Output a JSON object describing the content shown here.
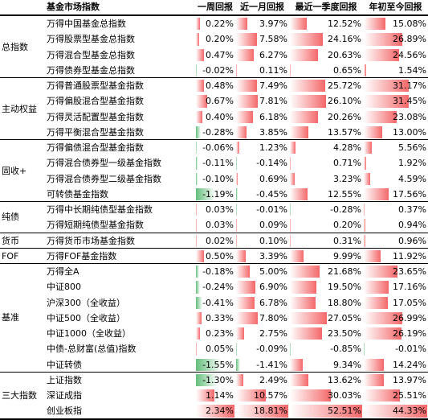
{
  "header": {
    "category": "",
    "name": "基金市场指数",
    "c1": "一周回报",
    "c2": "近一月回报",
    "c3": "最近一季度回报",
    "c4": "年初至今回报"
  },
  "colors": {
    "positive": "#f4686a",
    "negative": "#63be7b",
    "text": "#000000"
  },
  "groups": [
    {
      "label": "总指数",
      "rows": [
        {
          "name": "万得中国基金总指数",
          "v": [
            "0.22%",
            "3.97%",
            "12.52%",
            "15.08%"
          ],
          "n": [
            0.22,
            3.97,
            12.52,
            15.08
          ]
        },
        {
          "name": "万得股票型基金总指数",
          "v": [
            "0.20%",
            "7.58%",
            "24.16%",
            "26.89%"
          ],
          "n": [
            0.2,
            7.58,
            24.16,
            26.89
          ]
        },
        {
          "name": "万得混合型基金总指数",
          "v": [
            "0.47%",
            "6.27%",
            "20.63%",
            "24.56%"
          ],
          "n": [
            0.47,
            6.27,
            20.63,
            24.56
          ]
        },
        {
          "name": "万得债券型基金总指数",
          "v": [
            "-0.02%",
            "0.11%",
            "0.65%",
            "1.54%"
          ],
          "n": [
            -0.02,
            0.11,
            0.65,
            1.54
          ]
        }
      ]
    },
    {
      "label": "主动权益",
      "rows": [
        {
          "name": "万得普通股票型基金指数",
          "v": [
            "0.48%",
            "7.49%",
            "25.72%",
            "31.17%"
          ],
          "n": [
            0.48,
            7.49,
            25.72,
            31.17
          ]
        },
        {
          "name": "万得偏股混合型基金指数",
          "v": [
            "0.67%",
            "7.81%",
            "26.10%",
            "31.45%"
          ],
          "n": [
            0.67,
            7.81,
            26.1,
            31.45
          ]
        },
        {
          "name": "万得灵活配置型基金指数",
          "v": [
            "0.40%",
            "6.18%",
            "20.26%",
            "23.08%"
          ],
          "n": [
            0.4,
            6.18,
            20.26,
            23.08
          ]
        },
        {
          "name": "万得平衡混合型基金指数",
          "v": [
            "-0.28%",
            "3.85%",
            "13.57%",
            "13.00%"
          ],
          "n": [
            -0.28,
            3.85,
            13.57,
            13.0
          ]
        }
      ]
    },
    {
      "label": "固收+",
      "rows": [
        {
          "name": "万得偏债混合型基金指数",
          "v": [
            "-0.06%",
            "1.23%",
            "4.28%",
            "5.56%"
          ],
          "n": [
            -0.06,
            1.23,
            4.28,
            5.56
          ]
        },
        {
          "name": "万得混合债券型一级基金指数",
          "v": [
            "-0.11%",
            "-0.14%",
            "0.71%",
            "1.92%"
          ],
          "n": [
            -0.11,
            -0.14,
            0.71,
            1.92
          ]
        },
        {
          "name": "万得混合债券型二级基金指数",
          "v": [
            "-0.10%",
            "0.69%",
            "3.23%",
            "4.59%"
          ],
          "n": [
            -0.1,
            0.69,
            3.23,
            4.59
          ]
        },
        {
          "name": "可转债基金指数",
          "v": [
            "-1.19%",
            "-0.45%",
            "12.55%",
            "17.56%"
          ],
          "n": [
            -1.19,
            -0.45,
            12.55,
            17.56
          ]
        }
      ]
    },
    {
      "label": "纯债",
      "rows": [
        {
          "name": "万得中长期纯债型基金指数",
          "v": [
            "0.03%",
            "-0.01%",
            "-0.28%",
            "0.37%"
          ],
          "n": [
            0.03,
            -0.01,
            -0.28,
            0.37
          ]
        },
        {
          "name": "万得短期纯债型基金指数",
          "v": [
            "0.03%",
            "0.09%",
            "0.20%",
            "0.94%"
          ],
          "n": [
            0.03,
            0.09,
            0.2,
            0.94
          ]
        }
      ]
    },
    {
      "label": "货币",
      "rows": [
        {
          "name": "万得货币市场基金指数",
          "v": [
            "0.02%",
            "0.10%",
            "0.31%",
            "0.96%"
          ],
          "n": [
            0.02,
            0.1,
            0.31,
            0.96
          ]
        }
      ]
    },
    {
      "label": "FOF",
      "rows": [
        {
          "name": "万得FOF基金指数",
          "v": [
            "0.50%",
            "3.39%",
            "9.99%",
            "11.92%"
          ],
          "n": [
            0.5,
            3.39,
            9.99,
            11.92
          ]
        }
      ]
    },
    {
      "label": "基准",
      "rows": [
        {
          "name": "万得全A",
          "v": [
            "-0.18%",
            "5.00%",
            "21.68%",
            "23.65%"
          ],
          "n": [
            -0.18,
            5.0,
            21.68,
            23.65
          ]
        },
        {
          "name": "中证800",
          "v": [
            "-0.24%",
            "6.90%",
            "19.50%",
            "17.16%"
          ],
          "n": [
            -0.24,
            6.9,
            19.5,
            17.16
          ]
        },
        {
          "name": "沪深300（全收益）",
          "v": [
            "-0.41%",
            "6.78%",
            "18.80%",
            "17.05%"
          ],
          "n": [
            -0.41,
            6.78,
            18.8,
            17.05
          ]
        },
        {
          "name": "中证500（全收益）",
          "v": [
            "0.33%",
            "7.80%",
            "27.05%",
            "26.99%"
          ],
          "n": [
            0.33,
            7.8,
            27.05,
            26.99
          ]
        },
        {
          "name": "中证1000（全收益）",
          "v": [
            "0.23%",
            "2.75%",
            "23.50%",
            "26.19%"
          ],
          "n": [
            0.23,
            2.75,
            23.5,
            26.19
          ]
        },
        {
          "name": "中债-总财富(总值)指数",
          "v": [
            "0.05%",
            "-0.09%",
            "-0.85%",
            "-0.01%"
          ],
          "n": [
            0.05,
            -0.09,
            -0.85,
            -0.01
          ]
        },
        {
          "name": "中证转债",
          "v": [
            "-1.55%",
            "-1.41%",
            "9.34%",
            "14.24%"
          ],
          "n": [
            -1.55,
            -1.41,
            9.34,
            14.24
          ]
        }
      ]
    },
    {
      "label": "三大指数",
      "rows": [
        {
          "name": "上证指数",
          "v": [
            "-1.30%",
            "2.49%",
            "13.62%",
            "13.97%"
          ],
          "n": [
            -1.3,
            2.49,
            13.62,
            13.97
          ]
        },
        {
          "name": "深证成指",
          "v": [
            "1.14%",
            "10.57%",
            "30.03%",
            "25.51%"
          ],
          "n": [
            1.14,
            10.57,
            30.03,
            25.51
          ]
        },
        {
          "name": "创业板指",
          "v": [
            "2.34%",
            "18.81%",
            "52.51%",
            "44.33%"
          ],
          "n": [
            2.34,
            18.81,
            52.51,
            44.33
          ]
        }
      ]
    }
  ]
}
